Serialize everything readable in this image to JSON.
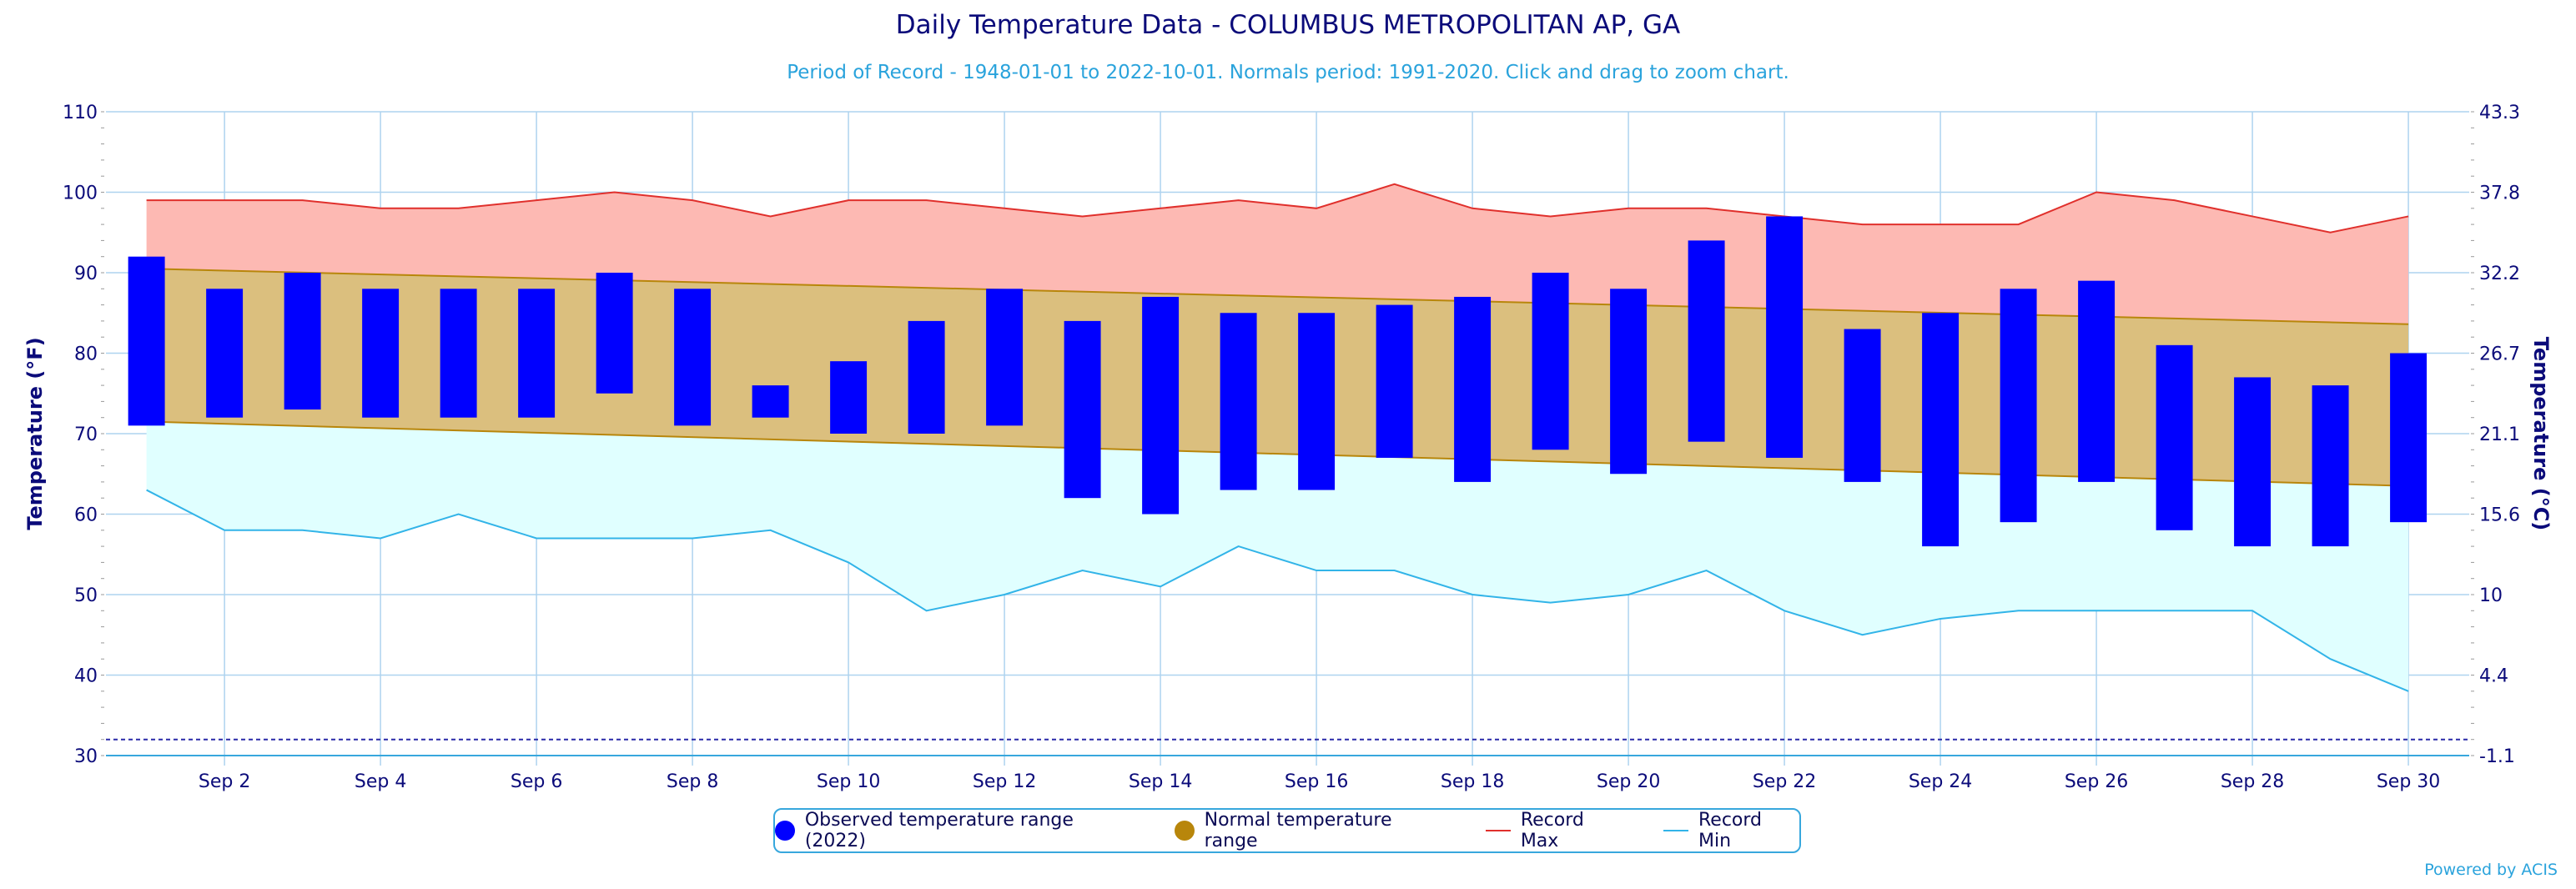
{
  "chart_data": {
    "type": "bar",
    "title": "Daily Temperature Data - COLUMBUS METROPOLITAN AP, GA",
    "subtitle": "Period of Record - 1948-01-01 to 2022-10-01. Normals period: 1991-2020. Click and drag to zoom chart.",
    "ylabel": "Temperature (°F)",
    "ylabel_right": "Temperature (°C)",
    "ylim": [
      30,
      110
    ],
    "yticks": [
      30,
      40,
      50,
      60,
      70,
      80,
      90,
      100,
      110
    ],
    "yticks_right": [
      "-1.1",
      "4.4",
      "10",
      "15.6",
      "21.1",
      "26.7",
      "32.2",
      "37.8",
      "43.3"
    ],
    "x": [
      1,
      2,
      3,
      4,
      5,
      6,
      7,
      8,
      9,
      10,
      11,
      12,
      13,
      14,
      15,
      16,
      17,
      18,
      19,
      20,
      21,
      22,
      23,
      24,
      25,
      26,
      27,
      28,
      29,
      30
    ],
    "xtick_positions": [
      2,
      4,
      6,
      8,
      10,
      12,
      14,
      16,
      18,
      20,
      22,
      24,
      26,
      28,
      30
    ],
    "xtick_labels": [
      "Sep 2",
      "Sep 4",
      "Sep 6",
      "Sep 8",
      "Sep 10",
      "Sep 12",
      "Sep 14",
      "Sep 16",
      "Sep 18",
      "Sep 20",
      "Sep 22",
      "Sep 24",
      "Sep 26",
      "Sep 28",
      "Sep 30"
    ],
    "freezing_line": 32,
    "grid": true,
    "legend_placement": "bottom-center",
    "series": [
      {
        "name": "Observed temperature range (2022)",
        "kind": "range-bar",
        "high": [
          92,
          88,
          90,
          88,
          88,
          88,
          90,
          88,
          76,
          79,
          84,
          88,
          84,
          87,
          85,
          85,
          86,
          87,
          90,
          88,
          94,
          97,
          83,
          85,
          88,
          89,
          81,
          77,
          76,
          80
        ],
        "low": [
          71,
          72,
          73,
          72,
          72,
          72,
          75,
          71,
          72,
          70,
          70,
          71,
          62,
          60,
          63,
          63,
          67,
          64,
          68,
          65,
          69,
          67,
          64,
          56,
          59,
          64,
          58,
          56,
          56,
          59
        ]
      },
      {
        "name": "Normal temperature range",
        "kind": "range-area",
        "high_start": 90.5,
        "high_end": 83.6,
        "low_start": 71.5,
        "low_end": 63.5
      },
      {
        "name": "Record Max",
        "kind": "line",
        "values": [
          99,
          99,
          99,
          98,
          98,
          99,
          100,
          99,
          97,
          99,
          99,
          98,
          97,
          98,
          99,
          98,
          101,
          98,
          97,
          98,
          98,
          97,
          96,
          96,
          96,
          100,
          99,
          97,
          95,
          97
        ]
      },
      {
        "name": "Record Min",
        "kind": "line",
        "values": [
          63,
          58,
          58,
          57,
          60,
          57,
          57,
          57,
          58,
          54,
          48,
          50,
          53,
          51,
          56,
          53,
          53,
          50,
          49,
          50,
          53,
          48,
          45,
          47,
          48,
          48,
          48,
          48,
          42,
          38
        ]
      }
    ]
  },
  "colors": {
    "observed": "#0000ff",
    "normal": "#b8860b",
    "normal_fill": "#dbbf7e",
    "record_max": "#e0302c",
    "record_max_fill": "#fdb9b3",
    "record_min": "#32b4e8",
    "record_min_fill": "#e0ffff",
    "axis_text": "#0b0b7a",
    "grid": "#aed3ef",
    "freezing": "#2a2aa8"
  },
  "credit": "Powered by ACIS"
}
